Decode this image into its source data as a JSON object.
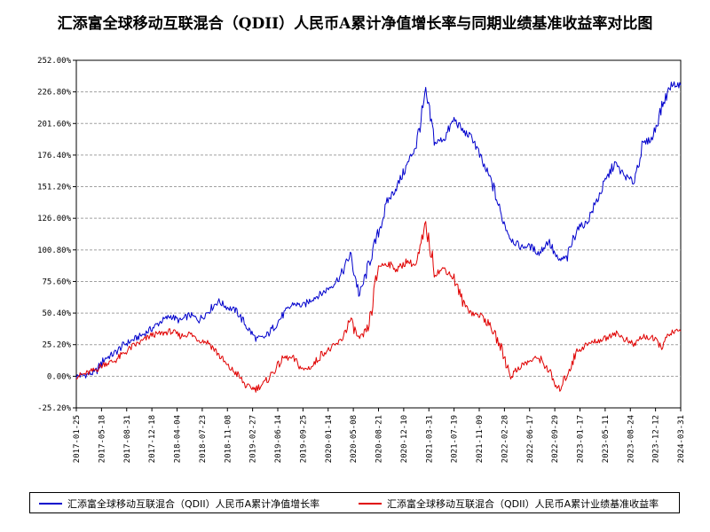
{
  "title": "汇添富全球移动互联混合（QDII）人民币A累计净值增长率与同期业绩基准收益率对比图",
  "chart_data": {
    "type": "line",
    "title": "汇添富全球移动互联混合（QDII）人民币A累计净值增长率与同期业绩基准收益率对比图",
    "y_tick_labels": [
      "252.00%",
      "226.80%",
      "201.60%",
      "176.40%",
      "151.20%",
      "126.00%",
      "100.80%",
      "75.60%",
      "50.40%",
      "25.20%",
      "0.00%",
      "-25.20%"
    ],
    "y_ticks": [
      252.0,
      226.8,
      201.6,
      176.4,
      151.2,
      126.0,
      100.8,
      75.6,
      50.4,
      25.2,
      0.0,
      -25.2
    ],
    "ylim": [
      -25.2,
      252.0
    ],
    "x_tick_labels": [
      "2017-01-25",
      "2017-05-18",
      "2017-08-31",
      "2017-12-18",
      "2018-04-04",
      "2018-07-23",
      "2018-11-08",
      "2019-02-27",
      "2019-06-14",
      "2019-09-25",
      "2020-01-14",
      "2020-05-08",
      "2020-08-21",
      "2020-12-10",
      "2021-03-31",
      "2021-07-19",
      "2021-11-09",
      "2022-02-28",
      "2022-06-17",
      "2022-09-29",
      "2023-01-17",
      "2023-05-11",
      "2023-08-24",
      "2023-12-12",
      "2024-03-31"
    ],
    "grid": true,
    "legend_position": "bottom",
    "series": [
      {
        "name": "汇添富全球移动互联混合（QDII）人民币A累计净值增长率",
        "color": "#0000cc",
        "values": [
          0,
          1,
          3,
          14,
          18,
          25,
          29,
          33,
          38,
          44,
          48,
          44,
          49,
          45,
          52,
          60,
          55,
          52,
          40,
          30,
          31,
          40,
          50,
          58,
          56,
          62,
          66,
          72,
          80,
          97,
          64,
          90,
          115,
          140,
          152,
          168,
          185,
          225,
          186,
          190,
          205,
          195,
          190,
          170,
          155,
          128,
          110,
          103,
          104,
          98,
          108,
          92,
          95,
          118,
          122,
          138,
          155,
          170,
          160,
          155,
          185,
          190,
          215,
          233,
          232
        ]
      },
      {
        "name": "汇添富全球移动互联混合（QDII）人民币A累计业绩基准收益率",
        "color": "#e00000",
        "values": [
          0,
          2,
          5,
          10,
          12,
          18,
          24,
          28,
          33,
          34,
          36,
          32,
          34,
          29,
          27,
          18,
          8,
          2,
          -8,
          -10,
          -5,
          5,
          15,
          14,
          5,
          8,
          18,
          22,
          28,
          45,
          28,
          40,
          88,
          90,
          85,
          92,
          88,
          120,
          82,
          86,
          78,
          58,
          50,
          48,
          38,
          22,
          0,
          8,
          12,
          15,
          5,
          -12,
          2,
          20,
          25,
          28,
          30,
          35,
          30,
          25,
          32,
          30,
          24,
          35,
          36
        ]
      }
    ]
  },
  "legend": {
    "item1": "汇添富全球移动互联混合（QDII）人民币A累计净值增长率",
    "item2": "汇添富全球移动互联混合（QDII）人民币A累计业绩基准收益率"
  },
  "colors": {
    "series1": "#0000cc",
    "series2": "#e00000",
    "grid": "#a0a0a0",
    "axis": "#000000"
  }
}
